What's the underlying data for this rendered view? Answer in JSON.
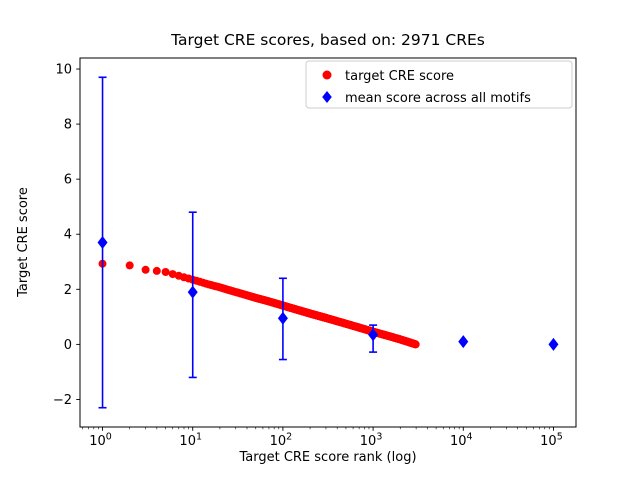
{
  "figure": {
    "title": "Target CRE scores, based on: 2971 CREs",
    "xlabel": "Target CRE score rank (log)",
    "ylabel": "Target CRE score"
  },
  "legend": {
    "items": [
      {
        "label": "target CRE score",
        "marker": "circle",
        "color": "#ff0000"
      },
      {
        "label": "mean score across all motifs",
        "marker": "diamond",
        "color": "#0000ff"
      }
    ]
  },
  "chart_data": {
    "type": "scatter",
    "title": "Target CRE scores, based on: 2971 CREs",
    "xlabel": "Target CRE score rank (log)",
    "ylabel": "Target CRE score",
    "x_scale": "log",
    "x_ticks": [
      1,
      10,
      100,
      1000,
      10000,
      100000
    ],
    "y_ticks": [
      -2,
      0,
      2,
      4,
      6,
      8,
      10
    ],
    "xlim_log10": [
      -0.25,
      5.25
    ],
    "ylim": [
      -3.0,
      10.4
    ],
    "grid": false,
    "legend_position": "upper right",
    "n_cres": 2971,
    "series": [
      {
        "name": "target CRE score",
        "type": "scatter",
        "marker": "circle",
        "color": "#ff0000",
        "n_points": 2971,
        "points_sampled": [
          [
            1,
            2.93
          ],
          [
            2,
            2.87
          ],
          [
            3,
            2.71
          ],
          [
            4,
            2.67
          ],
          [
            5,
            2.63
          ],
          [
            7,
            2.49
          ],
          [
            10,
            2.35
          ],
          [
            15,
            2.18
          ],
          [
            20,
            2.07
          ],
          [
            30,
            1.9
          ],
          [
            50,
            1.69
          ],
          [
            70,
            1.56
          ],
          [
            100,
            1.41
          ],
          [
            150,
            1.24
          ],
          [
            200,
            1.12
          ],
          [
            300,
            0.96
          ],
          [
            500,
            0.75
          ],
          [
            700,
            0.61
          ],
          [
            1000,
            0.46
          ],
          [
            1500,
            0.3
          ],
          [
            2000,
            0.18
          ],
          [
            2500,
            0.08
          ],
          [
            2971,
            0.0
          ]
        ]
      },
      {
        "name": "mean score across all motifs",
        "type": "errorbar",
        "marker": "diamond",
        "color": "#0000ff",
        "points": [
          {
            "x": 1,
            "y": 3.7,
            "ylo": -2.3,
            "yhi": 9.7
          },
          {
            "x": 10,
            "y": 1.9,
            "ylo": -1.2,
            "yhi": 4.8
          },
          {
            "x": 100,
            "y": 0.95,
            "ylo": -0.55,
            "yhi": 2.4
          },
          {
            "x": 1000,
            "y": 0.35,
            "ylo": -0.28,
            "yhi": 0.7
          },
          {
            "x": 10000,
            "y": 0.1,
            "ylo": 0.1,
            "yhi": 0.1
          },
          {
            "x": 100000,
            "y": 0.0,
            "ylo": 0.0,
            "yhi": 0.0
          }
        ]
      }
    ]
  }
}
